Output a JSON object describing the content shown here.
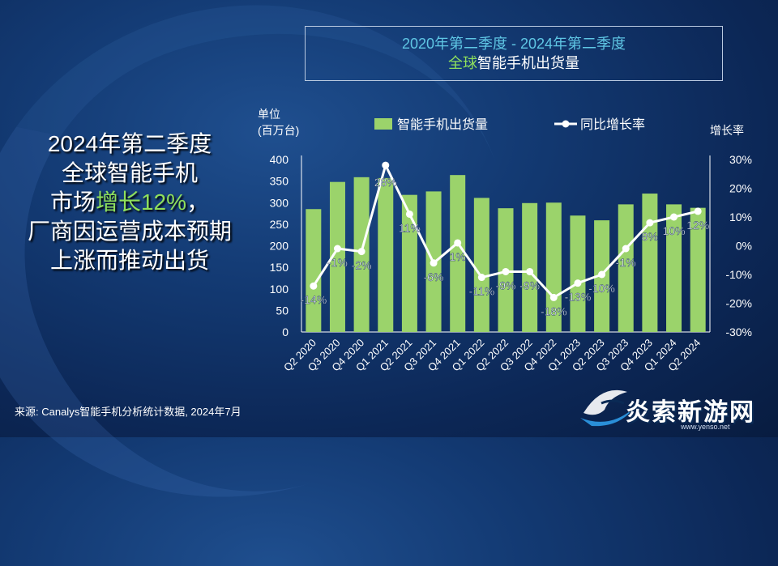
{
  "header": {
    "title_line1": "2020年第二季度 - 2024年第二季度",
    "title_line2_green": "全球",
    "title_line2_rest": "智能手机出货量"
  },
  "headline": {
    "line1": "2024年第二季度",
    "line2": "全球智能手机",
    "line3_pre": "市场",
    "line3_highlight": "增长12%",
    "line3_post": "，",
    "line4": "厂商因运营成本预期",
    "line5": "上涨而推动出货"
  },
  "source": "来源: Canalys智能手机分析统计数据, 2024年7月",
  "logo": {
    "text": "炎索新游网",
    "url": "www.yenso.net"
  },
  "colors": {
    "bar": "#9bd36b",
    "line": "#ffffff",
    "accent": "#8fe05c",
    "title_blue": "#5fc6e4"
  },
  "chart_data": {
    "type": "bar",
    "ylabel": "单位",
    "ylabel_unit": "(百万台)",
    "y2label": "增长率",
    "ylim": [
      0,
      400
    ],
    "yticks": [
      0,
      50,
      100,
      150,
      200,
      250,
      300,
      350,
      400
    ],
    "y2lim": [
      -30,
      30
    ],
    "y2ticks": [
      "-30%",
      "-20%",
      "-10%",
      "0%",
      "10%",
      "20%",
      "30%"
    ],
    "categories": [
      "Q2 2020",
      "Q3 2020",
      "Q4 2020",
      "Q1 2021",
      "Q2 2021",
      "Q3 2021",
      "Q4 2021",
      "Q1 2022",
      "Q2 2022",
      "Q3 2022",
      "Q4 2022",
      "Q1 2023",
      "Q2 2023",
      "Q3 2023",
      "Q4 2023",
      "Q1 2024",
      "Q2 2024"
    ],
    "series": [
      {
        "name": "智能手机出货量",
        "type": "bar",
        "values": [
          285,
          348,
          359,
          357,
          318,
          326,
          364,
          311,
          287,
          299,
          300,
          270,
          259,
          296,
          321,
          296,
          288
        ]
      },
      {
        "name": "同比增长率",
        "type": "line",
        "values": [
          -14,
          -1,
          -2,
          28,
          11,
          -6,
          1,
          -11,
          -9,
          -9,
          -18,
          -13,
          -10,
          -1,
          8,
          10,
          12
        ],
        "labels": [
          "-14%",
          "-1%",
          "-2%",
          "28%",
          "11%",
          "-6%",
          "1%",
          "-11%",
          "-9%",
          "-9%",
          "-18%",
          "-13%",
          "-10%",
          "-1%",
          "8%",
          "10%",
          "12%"
        ]
      }
    ]
  }
}
